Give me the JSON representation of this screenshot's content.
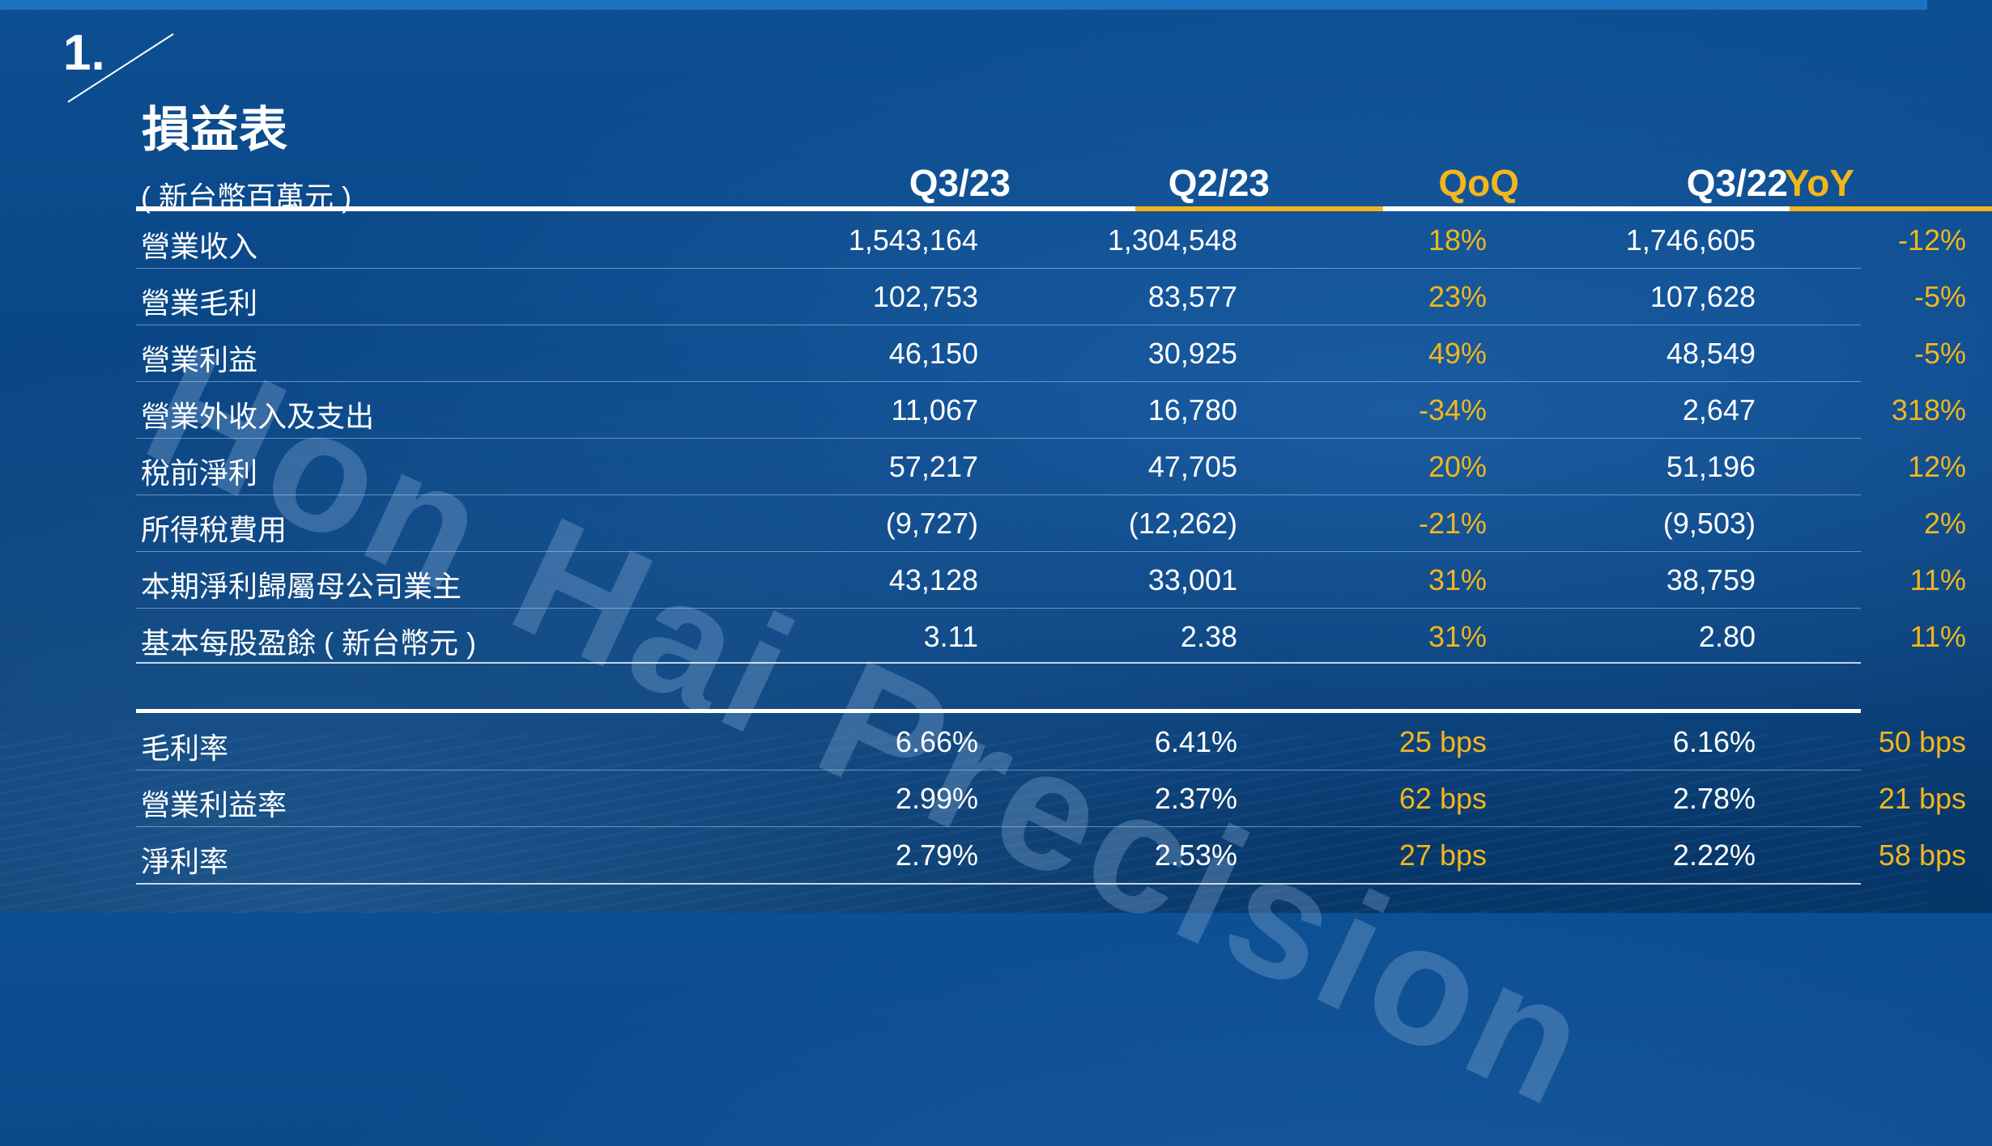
{
  "section_number": "1.",
  "title": "損益表",
  "watermark": "Hon Hai Precision",
  "unit_label": "( 新台幣百萬元 )",
  "columns": [
    "Q3/23",
    "Q2/23",
    "QoQ",
    "Q3/22",
    "YoY"
  ],
  "accent_color": "#f2b61c",
  "rows": [
    {
      "label": "營業收入",
      "values": [
        "1,543,164",
        "1,304,548",
        "18%",
        "1,746,605",
        "-12%"
      ]
    },
    {
      "label": "營業毛利",
      "values": [
        "102,753",
        "83,577",
        "23%",
        "107,628",
        "-5%"
      ]
    },
    {
      "label": "營業利益",
      "values": [
        "46,150",
        "30,925",
        "49%",
        "48,549",
        "-5%"
      ]
    },
    {
      "label": "營業外收入及支出",
      "values": [
        "11,067",
        "16,780",
        "-34%",
        "2,647",
        "318%"
      ]
    },
    {
      "label": "稅前淨利",
      "values": [
        "57,217",
        "47,705",
        "20%",
        "51,196",
        "12%"
      ]
    },
    {
      "label": "所得稅費用",
      "values": [
        "(9,727)",
        "(12,262)",
        "-21%",
        "(9,503)",
        "2%"
      ]
    },
    {
      "label": "本期淨利歸屬母公司業主",
      "values": [
        "43,128",
        "33,001",
        "31%",
        "38,759",
        "11%"
      ]
    },
    {
      "label": "基本每股盈餘 ( 新台幣元 )",
      "values": [
        "3.11",
        "2.38",
        "31%",
        "2.80",
        "11%"
      ]
    }
  ],
  "ratio_rows": [
    {
      "label": "毛利率",
      "values": [
        "6.66%",
        "6.41%",
        "25 bps",
        "6.16%",
        "50 bps"
      ]
    },
    {
      "label": "營業利益率",
      "values": [
        "2.99%",
        "2.37%",
        "62 bps",
        "2.78%",
        "21 bps"
      ]
    },
    {
      "label": "淨利率",
      "values": [
        "2.79%",
        "2.53%",
        "27 bps",
        "2.22%",
        "58 bps"
      ]
    }
  ]
}
